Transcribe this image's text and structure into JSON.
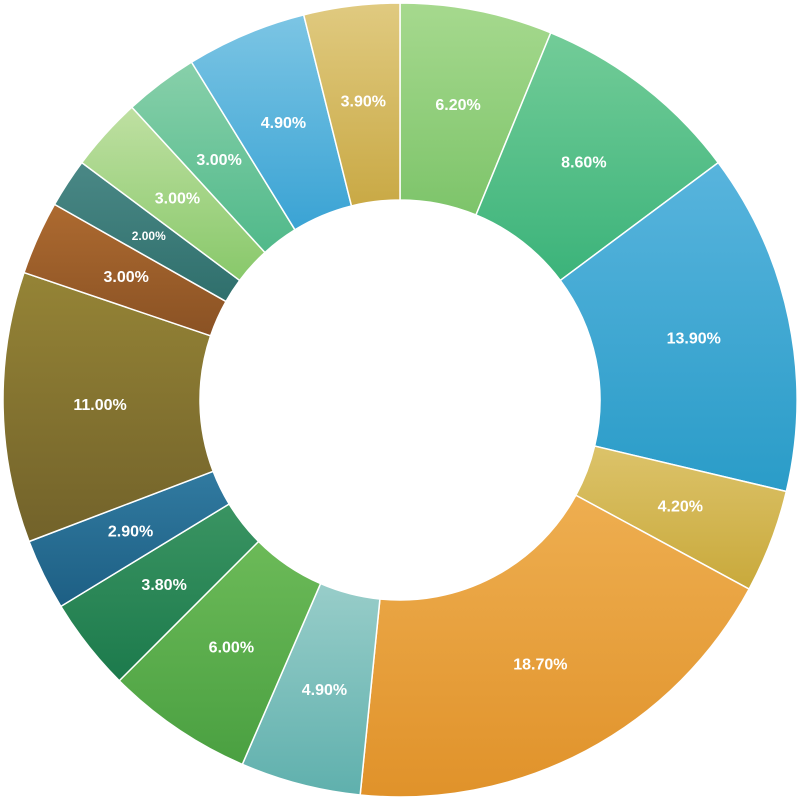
{
  "chart_data": {
    "type": "pie",
    "style": "donut",
    "start_angle_deg": 0,
    "direction": "clockwise",
    "slices": [
      {
        "value": 6.2,
        "label": "6.20%",
        "color": "#7dc46a",
        "color_light": "#a6d98e"
      },
      {
        "value": 8.6,
        "label": "8.60%",
        "color": "#3bb37a",
        "color_light": "#73cc98"
      },
      {
        "value": 13.9,
        "label": "13.90%",
        "color": "#2a9cc8",
        "color_light": "#58b4dd"
      },
      {
        "value": 4.2,
        "label": "4.20%",
        "color": "#c9a93b",
        "color_light": "#dcc36a"
      },
      {
        "value": 18.7,
        "label": "18.70%",
        "color": "#e0922a",
        "color_light": "#eeae50"
      },
      {
        "value": 4.9,
        "label": "4.90%",
        "color": "#5fb0ad",
        "color_light": "#98cdc9"
      },
      {
        "value": 6.0,
        "label": "6.00%",
        "color": "#4aa041",
        "color_light": "#6cba58"
      },
      {
        "value": 3.8,
        "label": "3.80%",
        "color": "#1c7a4c",
        "color_light": "#3a9462"
      },
      {
        "value": 2.9,
        "label": "2.90%",
        "color": "#1d5f84",
        "color_light": "#317aa0"
      },
      {
        "value": 11.0,
        "label": "11.00%",
        "color": "#72622a",
        "color_light": "#958436"
      },
      {
        "value": 3.0,
        "label": "3.00%",
        "color": "#8a5224",
        "color_light": "#ad6a30"
      },
      {
        "value": 2.0,
        "label": "2.00%",
        "color": "#2f6f6c",
        "color_light": "#4a8886"
      },
      {
        "value": 3.0,
        "label": "3.00%",
        "color": "#88c86a",
        "color_light": "#bfe0a2"
      },
      {
        "value": 3.0,
        "label": "3.00%",
        "color": "#50b98a",
        "color_light": "#88d0aa"
      },
      {
        "value": 4.9,
        "label": "4.90%",
        "color": "#3aa3d4",
        "color_light": "#7cc5e4"
      },
      {
        "value": 3.9,
        "label": "3.90%",
        "color": "#c9a945",
        "color_light": "#e0ca80"
      }
    ]
  }
}
